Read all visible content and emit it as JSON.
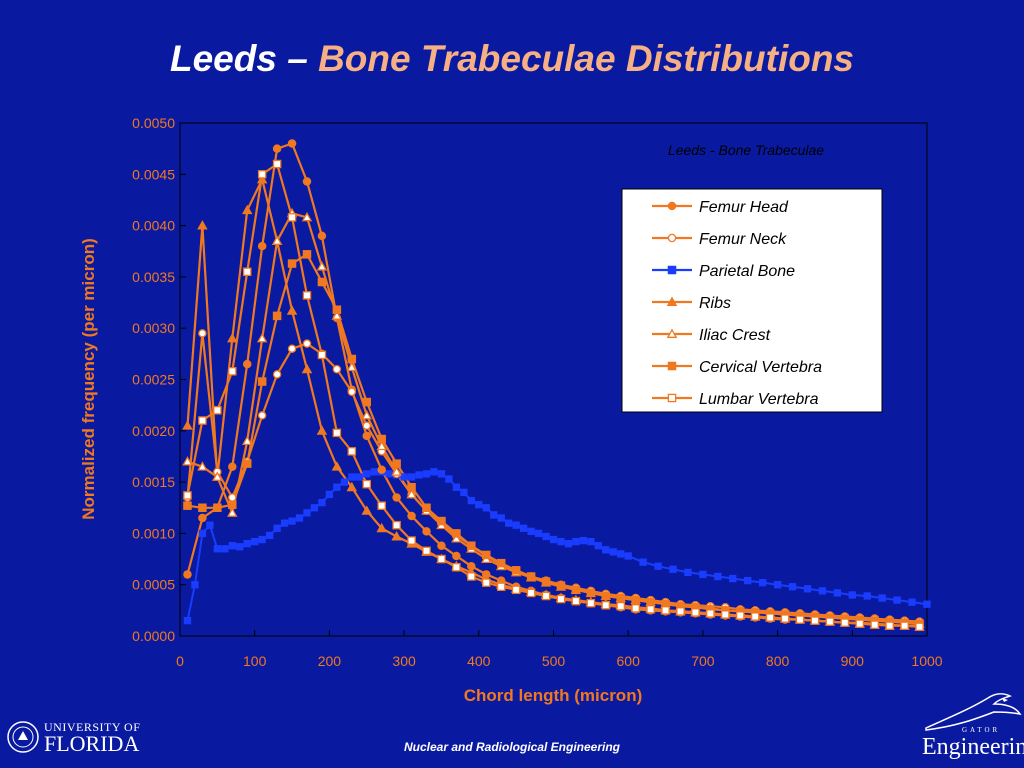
{
  "slide": {
    "title_part1": "Leeds – ",
    "title_part2": "Bone Trabeculae Distributions",
    "footer": "Nuclear and Radiological Engineering",
    "logo_left_line1": "UNIVERSITY OF",
    "logo_left_line2": "FLORIDA",
    "logo_right_small": "GATOR",
    "logo_right_text": "Engineering"
  },
  "colors": {
    "background": "#0a1aa0",
    "orange": "#f07820",
    "blue": "#1a3cff",
    "white": "#ffffff",
    "title_orange": "#f6b084"
  },
  "chart_data": {
    "type": "line",
    "title": "Leeds - Bone Trabeculae",
    "xlabel": "Chord length (micron)",
    "ylabel": "Normalized frequency (per micron)",
    "xlim": [
      0,
      1000
    ],
    "ylim": [
      0,
      0.005
    ],
    "xticks": [
      "0",
      "100",
      "200",
      "300",
      "400",
      "500",
      "600",
      "700",
      "800",
      "900",
      "1000"
    ],
    "yticks": [
      "0.0000",
      "0.0005",
      "0.0010",
      "0.0015",
      "0.0020",
      "0.0025",
      "0.0030",
      "0.0035",
      "0.0040",
      "0.0045",
      "0.0050"
    ],
    "legend_position": "top-right",
    "series": [
      {
        "name": "Femur Head",
        "color": "#f07820",
        "marker": "filled-circle",
        "x": [
          10,
          30,
          50,
          70,
          90,
          110,
          130,
          150,
          170,
          190,
          210,
          230,
          250,
          270,
          290,
          310,
          330,
          350,
          370,
          390,
          410,
          430,
          450,
          470,
          490,
          510,
          530,
          550,
          570,
          590,
          610,
          630,
          650,
          670,
          690,
          710,
          730,
          750,
          770,
          790,
          810,
          830,
          850,
          870,
          890,
          910,
          930,
          950,
          970,
          990
        ],
        "y": [
          0.0006,
          0.00115,
          0.00125,
          0.00165,
          0.00265,
          0.0038,
          0.00475,
          0.0048,
          0.00443,
          0.0039,
          0.0031,
          0.0024,
          0.00195,
          0.00162,
          0.00135,
          0.00117,
          0.00102,
          0.00088,
          0.00078,
          0.00068,
          0.0006,
          0.00054,
          0.00048,
          0.00044,
          0.0004,
          0.00037,
          0.00034,
          0.00032,
          0.0003,
          0.00028,
          0.00026,
          0.00025,
          0.00024,
          0.00023,
          0.00022,
          0.00021,
          0.0002,
          0.00019,
          0.00018,
          0.00017,
          0.00016,
          0.00016,
          0.00015,
          0.00014,
          0.00013,
          0.00013,
          0.00012,
          0.00011,
          0.0001,
          0.0001
        ]
      },
      {
        "name": "Femur Neck",
        "color": "#f07820",
        "marker": "open-circle",
        "x": [
          10,
          30,
          50,
          70,
          90,
          110,
          130,
          150,
          170,
          190,
          210,
          230,
          250,
          270,
          290,
          310,
          330,
          350,
          370,
          390,
          410,
          430,
          450,
          470,
          490,
          510,
          530,
          550,
          570,
          590,
          610,
          630,
          650,
          670,
          690,
          710,
          730,
          750,
          770,
          790,
          810,
          830,
          850,
          870,
          890,
          910,
          930,
          950,
          970,
          990
        ],
        "y": [
          0.00135,
          0.00295,
          0.0016,
          0.00135,
          0.0017,
          0.00215,
          0.00255,
          0.0028,
          0.00285,
          0.00275,
          0.0026,
          0.00238,
          0.00205,
          0.0018,
          0.00158,
          0.00138,
          0.00122,
          0.0011,
          0.00098,
          0.00088,
          0.00078,
          0.0007,
          0.00064,
          0.00058,
          0.00054,
          0.0005,
          0.00047,
          0.00044,
          0.00041,
          0.00039,
          0.00037,
          0.00035,
          0.00033,
          0.00031,
          0.0003,
          0.00029,
          0.00028,
          0.00026,
          0.00025,
          0.00024,
          0.00023,
          0.00022,
          0.00021,
          0.0002,
          0.00019,
          0.00018,
          0.00017,
          0.00016,
          0.00015,
          0.00014
        ]
      },
      {
        "name": "Parietal Bone",
        "color": "#1a3cff",
        "marker": "filled-square",
        "x": [
          10,
          20,
          30,
          40,
          50,
          60,
          70,
          80,
          90,
          100,
          110,
          120,
          130,
          140,
          150,
          160,
          170,
          180,
          190,
          200,
          210,
          220,
          230,
          240,
          250,
          260,
          270,
          280,
          290,
          300,
          310,
          320,
          330,
          340,
          350,
          360,
          370,
          380,
          390,
          400,
          410,
          420,
          430,
          440,
          450,
          460,
          470,
          480,
          490,
          500,
          510,
          520,
          530,
          540,
          550,
          560,
          570,
          580,
          590,
          600,
          620,
          640,
          660,
          680,
          700,
          720,
          740,
          760,
          780,
          800,
          820,
          840,
          860,
          880,
          900,
          920,
          940,
          960,
          980,
          1000
        ],
        "y": [
          0.00015,
          0.0005,
          0.001,
          0.00108,
          0.00085,
          0.00085,
          0.00088,
          0.00087,
          0.0009,
          0.00092,
          0.00094,
          0.00098,
          0.00105,
          0.0011,
          0.00112,
          0.00115,
          0.0012,
          0.00125,
          0.0013,
          0.00138,
          0.00145,
          0.0015,
          0.00155,
          0.00155,
          0.00158,
          0.0016,
          0.0016,
          0.00158,
          0.00157,
          0.00155,
          0.00155,
          0.00157,
          0.00158,
          0.0016,
          0.00158,
          0.00153,
          0.00145,
          0.0014,
          0.00132,
          0.00128,
          0.00125,
          0.00118,
          0.00115,
          0.0011,
          0.00108,
          0.00105,
          0.00102,
          0.001,
          0.00097,
          0.00094,
          0.00092,
          0.0009,
          0.00092,
          0.00093,
          0.00092,
          0.00088,
          0.00084,
          0.00082,
          0.0008,
          0.00078,
          0.00072,
          0.00068,
          0.00065,
          0.00062,
          0.0006,
          0.00058,
          0.00056,
          0.00054,
          0.00052,
          0.0005,
          0.00048,
          0.00046,
          0.00044,
          0.00042,
          0.0004,
          0.00039,
          0.00037,
          0.00035,
          0.00033,
          0.00031
        ]
      },
      {
        "name": "Ribs",
        "color": "#f07820",
        "marker": "filled-triangle",
        "x": [
          10,
          30,
          50,
          70,
          90,
          110,
          130,
          150,
          170,
          190,
          210,
          230,
          250,
          270,
          290,
          310,
          330,
          350,
          370,
          390,
          410,
          430,
          450,
          470,
          490,
          510,
          530,
          550,
          570,
          590,
          610,
          630,
          650,
          670,
          690,
          710,
          730,
          750,
          770,
          790,
          810,
          830,
          850,
          870,
          890,
          910,
          930,
          950,
          970,
          990
        ],
        "y": [
          0.00205,
          0.004,
          0.00155,
          0.0029,
          0.00415,
          0.00445,
          0.00385,
          0.00317,
          0.0026,
          0.002,
          0.00165,
          0.00145,
          0.00122,
          0.00105,
          0.00097,
          0.0009,
          0.00082,
          0.00075,
          0.00068,
          0.00062,
          0.00055,
          0.0005,
          0.00046,
          0.00043,
          0.0004,
          0.00037,
          0.00035,
          0.00033,
          0.00031,
          0.0003,
          0.00028,
          0.00027,
          0.00025,
          0.00024,
          0.00023,
          0.00022,
          0.00021,
          0.0002,
          0.00019,
          0.00018,
          0.00017,
          0.00016,
          0.00015,
          0.00014,
          0.00013,
          0.00012,
          0.00011,
          0.0001,
          0.0001,
          9e-05
        ]
      },
      {
        "name": "Iliac Crest",
        "color": "#f07820",
        "marker": "open-triangle",
        "x": [
          10,
          30,
          50,
          70,
          90,
          110,
          130,
          150,
          170,
          190,
          210,
          230,
          250,
          270,
          290,
          310,
          330,
          350,
          370,
          390,
          410,
          430,
          450,
          470,
          490,
          510,
          530,
          550,
          570,
          590,
          610,
          630,
          650,
          670,
          690,
          710,
          730,
          750,
          770,
          790,
          810,
          830,
          850,
          870,
          890,
          910,
          930,
          950,
          970,
          990
        ],
        "y": [
          0.0017,
          0.00165,
          0.00155,
          0.0012,
          0.0019,
          0.0029,
          0.00385,
          0.00412,
          0.00408,
          0.0036,
          0.00312,
          0.00262,
          0.00215,
          0.00185,
          0.0016,
          0.00138,
          0.00122,
          0.00108,
          0.00095,
          0.00085,
          0.00075,
          0.00068,
          0.00062,
          0.00057,
          0.00052,
          0.00048,
          0.00045,
          0.00042,
          0.00039,
          0.00037,
          0.00035,
          0.00033,
          0.00031,
          0.00029,
          0.00028,
          0.00027,
          0.00025,
          0.00024,
          0.00023,
          0.00022,
          0.00021,
          0.0002,
          0.00019,
          0.00018,
          0.00017,
          0.00016,
          0.00015,
          0.00014,
          0.00013,
          0.00012
        ]
      },
      {
        "name": "Cervical Vertebra",
        "color": "#f07820",
        "marker": "filled-square",
        "x": [
          10,
          30,
          50,
          70,
          90,
          110,
          130,
          150,
          170,
          190,
          210,
          230,
          250,
          270,
          290,
          310,
          330,
          350,
          370,
          390,
          410,
          430,
          450,
          470,
          490,
          510,
          530,
          550,
          570,
          590,
          610,
          630,
          650,
          670,
          690,
          710,
          730,
          750,
          770,
          790,
          810,
          830,
          850,
          870,
          890,
          910,
          930,
          950,
          970,
          990
        ],
        "y": [
          0.00127,
          0.00125,
          0.00125,
          0.00128,
          0.00168,
          0.00248,
          0.00312,
          0.00363,
          0.00372,
          0.00345,
          0.00318,
          0.0027,
          0.00228,
          0.00192,
          0.00168,
          0.00145,
          0.00125,
          0.00112,
          0.001,
          0.00088,
          0.00079,
          0.00071,
          0.00064,
          0.00058,
          0.00053,
          0.00049,
          0.00045,
          0.00042,
          0.00039,
          0.00037,
          0.00035,
          0.00033,
          0.00031,
          0.00029,
          0.00028,
          0.00026,
          0.00025,
          0.00024,
          0.00023,
          0.00022,
          0.00021,
          0.0002,
          0.00019,
          0.00018,
          0.00017,
          0.00016,
          0.00015,
          0.00014,
          0.00013,
          0.00012
        ]
      },
      {
        "name": "Lumbar Vertebra",
        "color": "#f07820",
        "marker": "open-square",
        "x": [
          10,
          30,
          50,
          70,
          90,
          110,
          130,
          150,
          170,
          190,
          210,
          230,
          250,
          270,
          290,
          310,
          330,
          350,
          370,
          390,
          410,
          430,
          450,
          470,
          490,
          510,
          530,
          550,
          570,
          590,
          610,
          630,
          650,
          670,
          690,
          710,
          730,
          750,
          770,
          790,
          810,
          830,
          850,
          870,
          890,
          910,
          930,
          950,
          970,
          990
        ],
        "y": [
          0.00137,
          0.0021,
          0.0022,
          0.00258,
          0.00355,
          0.0045,
          0.0046,
          0.00408,
          0.00332,
          0.00274,
          0.00198,
          0.0018,
          0.00148,
          0.00127,
          0.00108,
          0.00093,
          0.00083,
          0.00075,
          0.00067,
          0.00058,
          0.00052,
          0.00048,
          0.00045,
          0.00042,
          0.00039,
          0.00036,
          0.00034,
          0.00032,
          0.0003,
          0.00029,
          0.00027,
          0.00026,
          0.00025,
          0.00024,
          0.00023,
          0.00022,
          0.00021,
          0.0002,
          0.00019,
          0.00018,
          0.00017,
          0.00016,
          0.00015,
          0.00014,
          0.00013,
          0.00012,
          0.00011,
          0.0001,
          0.0001,
          9e-05
        ]
      }
    ]
  }
}
